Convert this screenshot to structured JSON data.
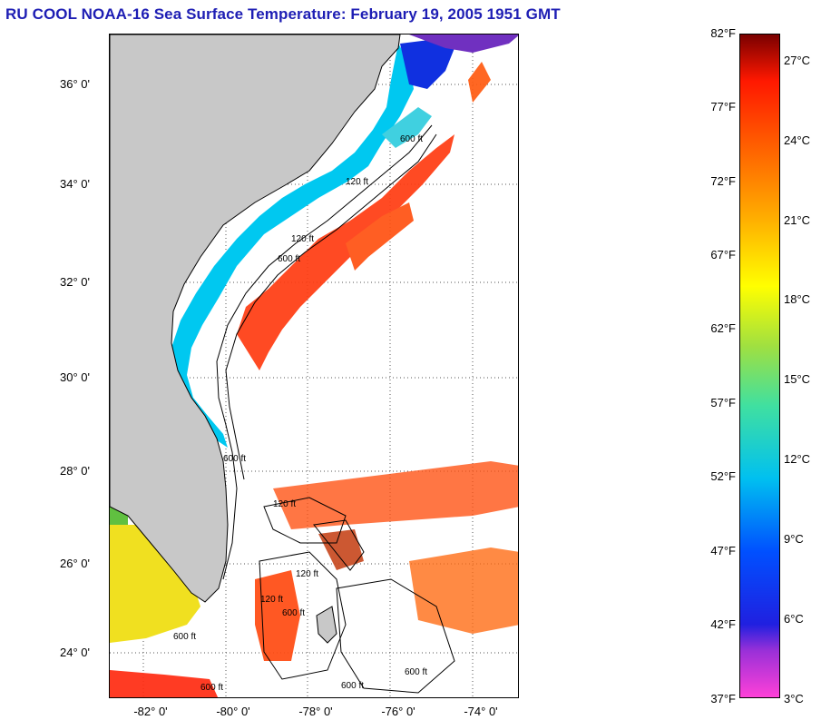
{
  "title": "RU COOL  NOAA-16  Sea Surface Temperature:  February 19, 2005 1951 GMT",
  "latitude_labels": [
    "36° 0'",
    "34° 0'",
    "32° 0'",
    "30° 0'",
    "28° 0'",
    "26° 0'",
    "24° 0'"
  ],
  "longitude_labels": [
    "-82° 0'",
    "-80° 0'",
    "-78° 0'",
    "-76° 0'",
    "-74° 0'"
  ],
  "fahrenheit_labels": [
    "82°F",
    "77°F",
    "72°F",
    "67°F",
    "62°F",
    "57°F",
    "52°F",
    "47°F",
    "42°F",
    "37°F"
  ],
  "celsius_labels": [
    "27°C",
    "24°C",
    "21°C",
    "18°C",
    "15°C",
    "12°C",
    "9°C",
    "6°C",
    "3°C"
  ],
  "contour_labels": [
    "120 ft",
    "600 ft"
  ],
  "colors": {
    "title": "#1e1eb4",
    "land": "#c8c8c8",
    "warm_water": "#ff3a10",
    "shelf_water": "#00c8f0",
    "cold_water": "#1030e0"
  }
}
